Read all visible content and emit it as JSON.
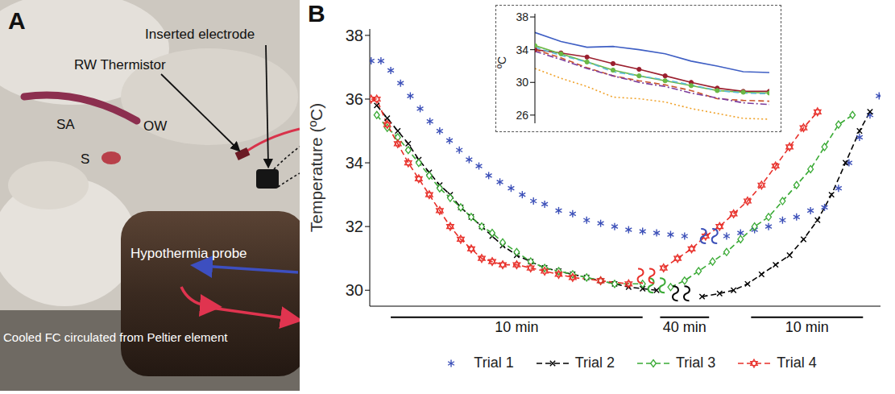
{
  "panel_a": {
    "letter": "A",
    "labels": [
      "SA",
      "OW",
      "S",
      "RW Thermistor",
      "Inserted electrode",
      "Hypothermia probe",
      "Cooled FC circulated from Peltier element"
    ]
  },
  "chart_data": [
    {
      "panel": "B",
      "type": "line",
      "y_label": "Temperature (ºC)",
      "xlim": [
        0,
        730
      ],
      "ylim": [
        29.5,
        38.2
      ],
      "yticks": [
        30,
        32,
        34,
        36,
        38
      ],
      "tick_labels": "y",
      "legend": "bottom",
      "time_bars": [
        {
          "label": "10 min",
          "x": [
            30,
            390
          ]
        },
        {
          "label": "40 min",
          "x": [
            415,
            485
          ]
        },
        {
          "label": "10 min",
          "x": [
            545,
            705
          ]
        }
      ],
      "series": [
        {
          "name": "Trial 1",
          "color": "#3b4fb8",
          "marker": "asterisk",
          "line_style": "none",
          "x": [
            2,
            16,
            30,
            44,
            58,
            72,
            86,
            100,
            114,
            128,
            142,
            156,
            170,
            186,
            202,
            218,
            234,
            250,
            270,
            290,
            310,
            330,
            350,
            370,
            390,
            410,
            430,
            450,
            485,
            510,
            530,
            550,
            570,
            590,
            610,
            630,
            650,
            670,
            685,
            700,
            715,
            728
          ],
          "values": [
            37.2,
            37.2,
            36.9,
            36.5,
            36.1,
            35.7,
            35.3,
            35.0,
            34.7,
            34.4,
            34.1,
            33.9,
            33.6,
            33.4,
            33.2,
            33.0,
            32.8,
            32.7,
            32.5,
            32.4,
            32.2,
            32.1,
            32.0,
            31.9,
            31.85,
            31.8,
            31.75,
            31.7,
            null,
            31.7,
            31.8,
            31.9,
            32.0,
            32.2,
            32.3,
            32.5,
            32.6,
            33.2,
            34.0,
            34.8,
            35.5,
            36.1
          ]
        },
        {
          "name": "Trial 2",
          "color": "#000000",
          "marker": "x",
          "line_style": "dashed",
          "x": [
            10,
            25,
            40,
            55,
            70,
            85,
            100,
            115,
            130,
            145,
            160,
            175,
            190,
            210,
            230,
            250,
            270,
            290,
            310,
            330,
            350,
            370,
            390,
            410,
            445,
            475,
            500,
            520,
            540,
            560,
            580,
            600,
            620,
            640,
            660,
            680,
            700,
            715
          ],
          "values": [
            35.8,
            35.4,
            35.0,
            34.6,
            34.1,
            33.7,
            33.3,
            33.0,
            32.6,
            32.3,
            32.0,
            31.7,
            31.4,
            31.1,
            30.9,
            30.7,
            30.6,
            30.5,
            30.4,
            30.3,
            30.2,
            30.1,
            30.05,
            30.0,
            null,
            29.8,
            29.9,
            30.0,
            30.2,
            30.5,
            30.8,
            31.1,
            31.6,
            32.2,
            33.0,
            34.0,
            35.0,
            35.6
          ]
        },
        {
          "name": "Trial 3",
          "color": "#3aaa35",
          "marker": "diamond",
          "line_style": "dashed",
          "x": [
            10,
            25,
            40,
            55,
            70,
            85,
            100,
            115,
            130,
            145,
            160,
            175,
            190,
            210,
            230,
            250,
            270,
            290,
            310,
            330,
            350,
            390,
            410,
            430,
            450,
            470,
            490,
            510,
            530,
            550,
            570,
            590,
            610,
            630,
            650,
            670,
            690
          ],
          "values": [
            35.5,
            35.1,
            34.8,
            34.4,
            34.0,
            33.6,
            33.2,
            32.9,
            32.6,
            32.3,
            32.0,
            31.8,
            31.5,
            31.2,
            30.9,
            30.7,
            30.6,
            30.5,
            30.4,
            30.3,
            30.2,
            30.2,
            null,
            30.1,
            30.3,
            30.6,
            30.9,
            31.2,
            31.6,
            32.0,
            32.3,
            32.8,
            33.3,
            33.8,
            34.5,
            35.2,
            35.5
          ]
        },
        {
          "name": "Trial 4",
          "color": "#e8302a",
          "marker": "hexagram",
          "line_style": "dashed",
          "x": [
            2,
            10,
            25,
            40,
            55,
            70,
            85,
            100,
            115,
            130,
            145,
            160,
            175,
            190,
            210,
            230,
            250,
            270,
            290,
            330,
            370,
            395,
            420,
            440,
            460,
            480,
            500,
            520,
            540,
            560,
            580,
            600,
            620,
            640
          ],
          "values": [
            36.0,
            36.0,
            35.2,
            34.6,
            34.0,
            33.5,
            33.0,
            32.5,
            32.0,
            31.6,
            31.3,
            31.0,
            30.9,
            30.8,
            30.8,
            30.7,
            30.6,
            30.5,
            30.4,
            30.3,
            30.2,
            null,
            30.7,
            31.0,
            31.3,
            31.7,
            32.0,
            32.4,
            32.8,
            33.3,
            33.9,
            34.5,
            35.1,
            35.6
          ]
        }
      ]
    },
    {
      "type": "line",
      "y_label": "ºC",
      "xlim": [
        0,
        9
      ],
      "ylim": [
        25,
        38.4
      ],
      "yticks": [
        26,
        30,
        34,
        38
      ],
      "tick_labels": "y",
      "x": [
        0,
        1,
        2,
        3,
        4,
        5,
        6,
        7,
        8,
        9
      ],
      "series": [
        {
          "color": "#3f5fc4",
          "line_style": "solid",
          "marker": "none",
          "values": [
            36.1,
            35.0,
            34.3,
            34.4,
            34.0,
            33.5,
            32.6,
            32.0,
            31.3,
            31.2
          ]
        },
        {
          "color": "#9b1f2e",
          "line_style": "solid",
          "marker": "circle",
          "values": [
            34.0,
            33.6,
            33.1,
            32.3,
            31.6,
            30.8,
            30.0,
            29.3,
            28.9,
            28.9
          ]
        },
        {
          "color": "#6bb845",
          "line_style": "solid",
          "marker": "circle",
          "values": [
            34.5,
            33.5,
            32.5,
            31.5,
            30.8,
            30.2,
            29.6,
            29.0,
            28.8,
            28.7
          ]
        },
        {
          "color": "#5bbbd9",
          "line_style": "dashed",
          "marker": "none",
          "values": [
            34.3,
            33.3,
            32.5,
            31.3,
            30.8,
            30.3,
            29.7,
            29.0,
            28.7,
            28.6
          ]
        },
        {
          "color": "#c9542b",
          "line_style": "dashed",
          "marker": "none",
          "values": [
            34.0,
            33.0,
            31.8,
            30.8,
            30.2,
            29.7,
            29.0,
            28.0,
            27.8,
            27.7
          ]
        },
        {
          "color": "#7b3c9c",
          "line_style": "dashdot",
          "marker": "none",
          "values": [
            33.8,
            32.8,
            31.7,
            30.8,
            30.0,
            29.5,
            28.7,
            28.1,
            27.5,
            27.3
          ]
        },
        {
          "color": "#f0a22a",
          "line_style": "dotted",
          "marker": "none",
          "values": [
            31.7,
            30.5,
            29.5,
            28.2,
            28.0,
            27.6,
            26.8,
            26.2,
            25.6,
            25.5
          ]
        }
      ]
    }
  ]
}
